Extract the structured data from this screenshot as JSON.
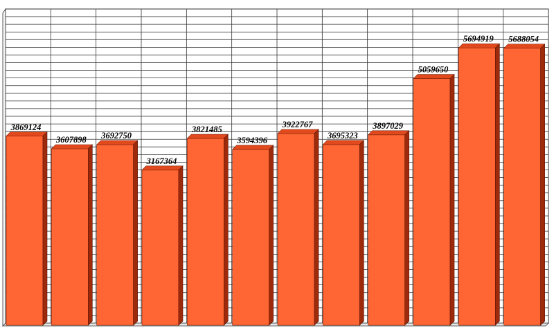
{
  "chart_data": {
    "type": "bar",
    "title": "",
    "xlabel": "",
    "ylabel": "",
    "categories": [
      "",
      "",
      "",
      "",
      "",
      "",
      "",
      "",
      "",
      "",
      "",
      ""
    ],
    "values": [
      3869124,
      3607898,
      3692750,
      3167364,
      3821485,
      3594396,
      3922767,
      3695323,
      3897029,
      5059650,
      5694919,
      5688054
    ],
    "value_labels": [
      "3869124",
      "3607898",
      "3692750",
      "3167364",
      "3821485",
      "3594396",
      "3922767",
      "3695323",
      "3897029",
      "5059650",
      "5694919",
      "5688054"
    ],
    "ylim": [
      0,
      6500000
    ],
    "grid": true,
    "legend": "none",
    "style": "3d-bars"
  },
  "colors": {
    "bar_front": "#ff6633",
    "bar_side": "#9e2a0c",
    "bar_top": "#e24a1e",
    "grid": "#333333",
    "background": "#ffffff"
  }
}
